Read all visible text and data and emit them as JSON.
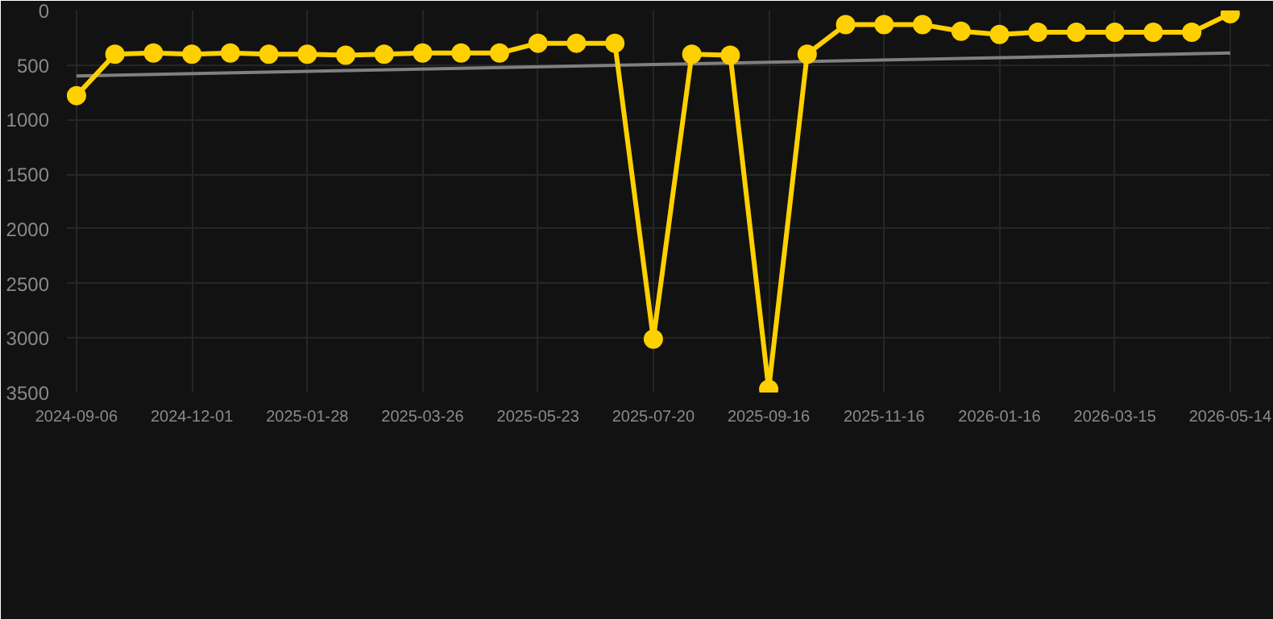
{
  "chart_data": {
    "type": "line",
    "categories": [
      "2024-09-06",
      null,
      null,
      "2024-12-01",
      null,
      null,
      "2025-01-28",
      null,
      null,
      "2025-03-26",
      null,
      null,
      "2025-05-23",
      null,
      null,
      "2025-07-20",
      null,
      null,
      "2025-09-16",
      null,
      null,
      "2025-11-16",
      null,
      null,
      "2026-01-16",
      null,
      null,
      "2026-03-15",
      null,
      null,
      "2026-05-14"
    ],
    "series": [
      {
        "color": "#ffd000",
        "marker": "circle",
        "values": [
          780,
          400,
          390,
          400,
          390,
          400,
          400,
          410,
          400,
          390,
          390,
          390,
          300,
          300,
          300,
          3010,
          400,
          410,
          3470,
          400,
          130,
          130,
          130,
          190,
          220,
          200,
          200,
          200,
          200,
          200,
          30
        ]
      },
      {
        "color": "#808080",
        "marker": "none",
        "values": [
          600,
          null,
          null,
          null,
          null,
          null,
          null,
          null,
          null,
          null,
          null,
          null,
          null,
          null,
          null,
          null,
          null,
          null,
          null,
          null,
          null,
          null,
          null,
          null,
          null,
          null,
          null,
          null,
          null,
          null,
          390
        ]
      }
    ],
    "ylim": [
      3500,
      0
    ],
    "yticks": [
      0,
      500,
      1000,
      1500,
      2000,
      2500,
      3000,
      3500
    ],
    "grid": true
  }
}
